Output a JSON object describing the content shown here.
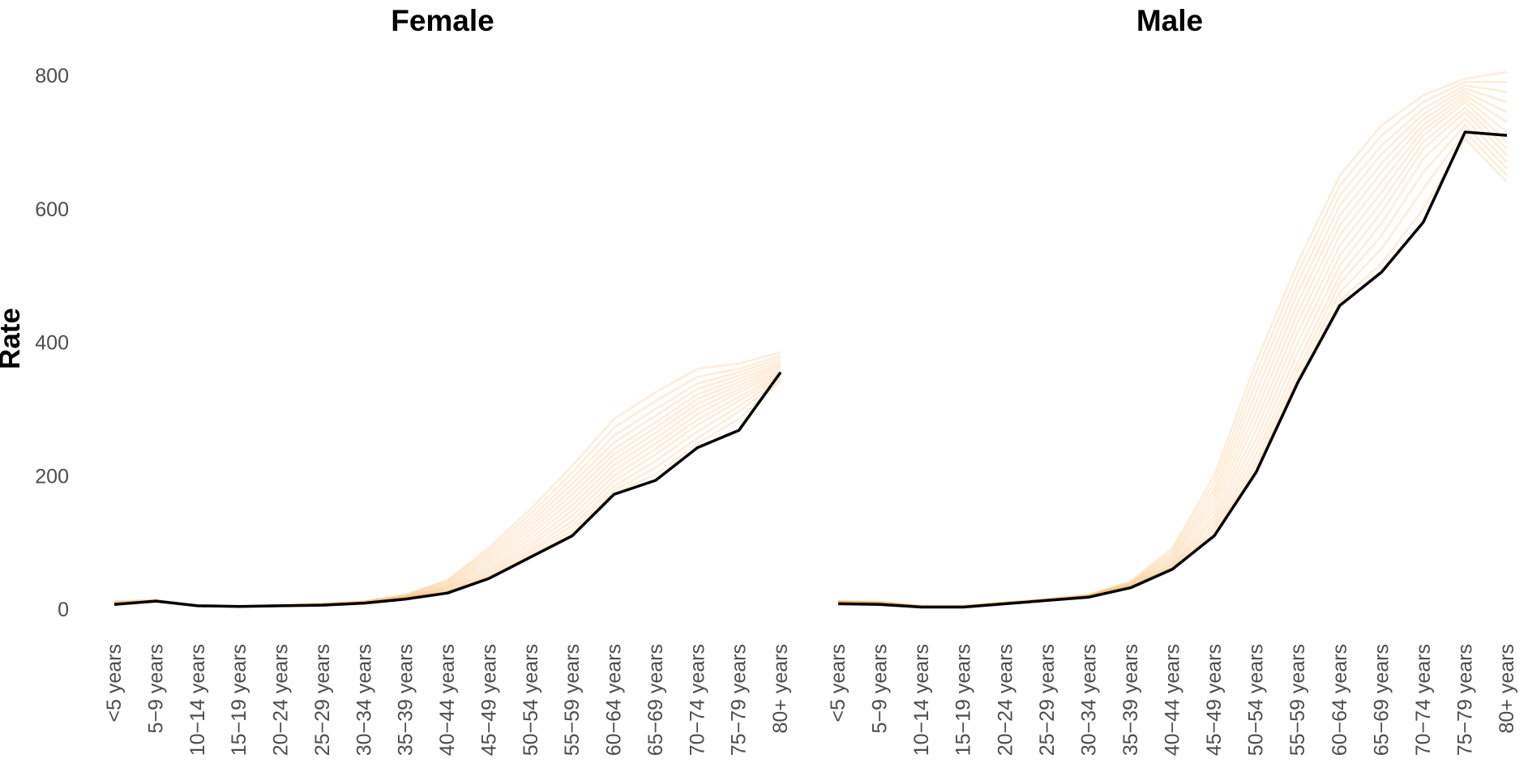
{
  "chart_data": {
    "type": "line",
    "ylabel": "Rate",
    "ylim": [
      0,
      800
    ],
    "yticks": [
      0,
      200,
      400,
      600,
      800
    ],
    "grid": false,
    "legend": "none",
    "categories": [
      "<5 years",
      "5−9 years",
      "10−14 years",
      "15−19 years",
      "20−24 years",
      "25−29 years",
      "30−34 years",
      "35−39 years",
      "40−44 years",
      "45−49 years",
      "50−54 years",
      "55−59 years",
      "60−64 years",
      "65−69 years",
      "70−74 years",
      "75−79 years",
      "80+ years"
    ],
    "colors": {
      "highlight": "#000000",
      "background": "#f5a442"
    },
    "panels": [
      {
        "title": "Female",
        "highlight": [
          7,
          12,
          5,
          4,
          5,
          6,
          9,
          15,
          24,
          46,
          78,
          110,
          172,
          193,
          242,
          268,
          355
        ],
        "background_series": [
          [
            12,
            14,
            5,
            4,
            6,
            8,
            12,
            22,
            44,
            92,
            150,
            215,
            285,
            325,
            360,
            368,
            385
          ],
          [
            11,
            13,
            5,
            4,
            6,
            8,
            11,
            21,
            42,
            88,
            143,
            205,
            272,
            312,
            348,
            360,
            380
          ],
          [
            10,
            13,
            5,
            4,
            6,
            7,
            11,
            20,
            40,
            84,
            136,
            196,
            260,
            300,
            338,
            355,
            376
          ],
          [
            10,
            12,
            5,
            4,
            6,
            7,
            11,
            19,
            38,
            80,
            130,
            188,
            250,
            290,
            330,
            350,
            372
          ],
          [
            9,
            12,
            5,
            4,
            6,
            7,
            10,
            18,
            36,
            76,
            124,
            180,
            240,
            280,
            322,
            345,
            368
          ],
          [
            9,
            12,
            5,
            4,
            5,
            7,
            10,
            18,
            34,
            72,
            118,
            172,
            232,
            272,
            315,
            340,
            365
          ],
          [
            9,
            12,
            5,
            4,
            5,
            7,
            10,
            17,
            33,
            68,
            112,
            164,
            224,
            264,
            308,
            335,
            362
          ],
          [
            8,
            12,
            5,
            4,
            5,
            7,
            10,
            17,
            31,
            64,
            106,
            156,
            216,
            256,
            300,
            330,
            358
          ],
          [
            8,
            12,
            5,
            4,
            5,
            7,
            9,
            16,
            30,
            60,
            100,
            148,
            208,
            248,
            292,
            325,
            355
          ],
          [
            8,
            12,
            5,
            4,
            5,
            6,
            9,
            16,
            28,
            57,
            95,
            140,
            200,
            240,
            284,
            318,
            352
          ],
          [
            8,
            11,
            5,
            4,
            5,
            6,
            9,
            16,
            27,
            54,
            90,
            132,
            192,
            232,
            276,
            312,
            350
          ],
          [
            8,
            11,
            5,
            4,
            5,
            6,
            9,
            15,
            26,
            51,
            86,
            125,
            184,
            222,
            266,
            304,
            348
          ],
          [
            7,
            11,
            5,
            4,
            5,
            6,
            9,
            15,
            25,
            49,
            82,
            118,
            178,
            212,
            256,
            296,
            345
          ],
          [
            7,
            11,
            5,
            4,
            5,
            6,
            9,
            15,
            24,
            47,
            79,
            113,
            174,
            202,
            248,
            285,
            342
          ]
        ]
      },
      {
        "title": "Male",
        "highlight": [
          8,
          7,
          3,
          3,
          8,
          13,
          18,
          32,
          60,
          110,
          205,
          340,
          455,
          505,
          580,
          715,
          710
        ],
        "background_series": [
          [
            12,
            11,
            5,
            5,
            10,
            15,
            22,
            42,
            92,
            200,
            370,
            520,
            650,
            725,
            770,
            795,
            805
          ],
          [
            12,
            10,
            5,
            5,
            10,
            15,
            21,
            40,
            88,
            190,
            355,
            505,
            635,
            710,
            760,
            790,
            790
          ],
          [
            11,
            10,
            4,
            4,
            10,
            14,
            21,
            39,
            84,
            180,
            340,
            490,
            620,
            695,
            750,
            785,
            775
          ],
          [
            11,
            10,
            4,
            4,
            9,
            14,
            20,
            38,
            80,
            172,
            325,
            475,
            605,
            682,
            742,
            780,
            760
          ],
          [
            11,
            9,
            4,
            4,
            9,
            14,
            20,
            37,
            77,
            164,
            310,
            460,
            590,
            668,
            734,
            775,
            745
          ],
          [
            10,
            9,
            4,
            4,
            9,
            14,
            20,
            36,
            74,
            156,
            296,
            445,
            575,
            655,
            726,
            770,
            730
          ],
          [
            10,
            9,
            4,
            4,
            9,
            13,
            19,
            35,
            71,
            148,
            282,
            430,
            560,
            640,
            718,
            765,
            715
          ],
          [
            10,
            9,
            4,
            4,
            9,
            13,
            19,
            34,
            68,
            140,
            268,
            415,
            545,
            625,
            710,
            760,
            700
          ],
          [
            10,
            8,
            4,
            4,
            9,
            13,
            19,
            34,
            66,
            134,
            255,
            400,
            530,
            610,
            700,
            752,
            690
          ],
          [
            9,
            8,
            4,
            4,
            8,
            13,
            18,
            33,
            64,
            128,
            243,
            385,
            515,
            595,
            690,
            745,
            680
          ],
          [
            9,
            8,
            3,
            3,
            8,
            13,
            18,
            33,
            62,
            122,
            232,
            370,
            500,
            578,
            675,
            735,
            670
          ],
          [
            9,
            8,
            3,
            3,
            8,
            13,
            18,
            32,
            61,
            117,
            222,
            358,
            488,
            560,
            655,
            725,
            660
          ],
          [
            9,
            8,
            3,
            3,
            8,
            13,
            18,
            32,
            60,
            113,
            214,
            348,
            475,
            540,
            630,
            715,
            650
          ],
          [
            9,
            7,
            3,
            3,
            8,
            13,
            18,
            32,
            60,
            111,
            208,
            342,
            462,
            518,
            600,
            705,
            640
          ]
        ]
      }
    ]
  }
}
